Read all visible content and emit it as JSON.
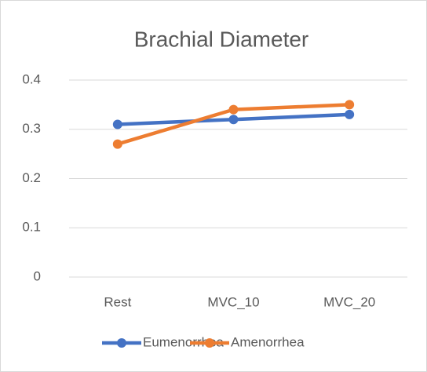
{
  "chart_data": {
    "type": "line",
    "title": "Brachial Diameter",
    "categories": [
      "Rest",
      "MVC_10",
      "MVC_20"
    ],
    "series": [
      {
        "name": "Eumenorrhea",
        "color": "#4472c4",
        "values": [
          0.31,
          0.32,
          0.33
        ]
      },
      {
        "name": "Amenorrhea",
        "color": "#ed7d31",
        "values": [
          0.27,
          0.34,
          0.35
        ]
      }
    ],
    "ylim": [
      0,
      0.4
    ],
    "yticks": [
      0,
      0.1,
      0.2,
      0.3,
      0.4
    ],
    "grid": true,
    "legend": "bottom"
  }
}
